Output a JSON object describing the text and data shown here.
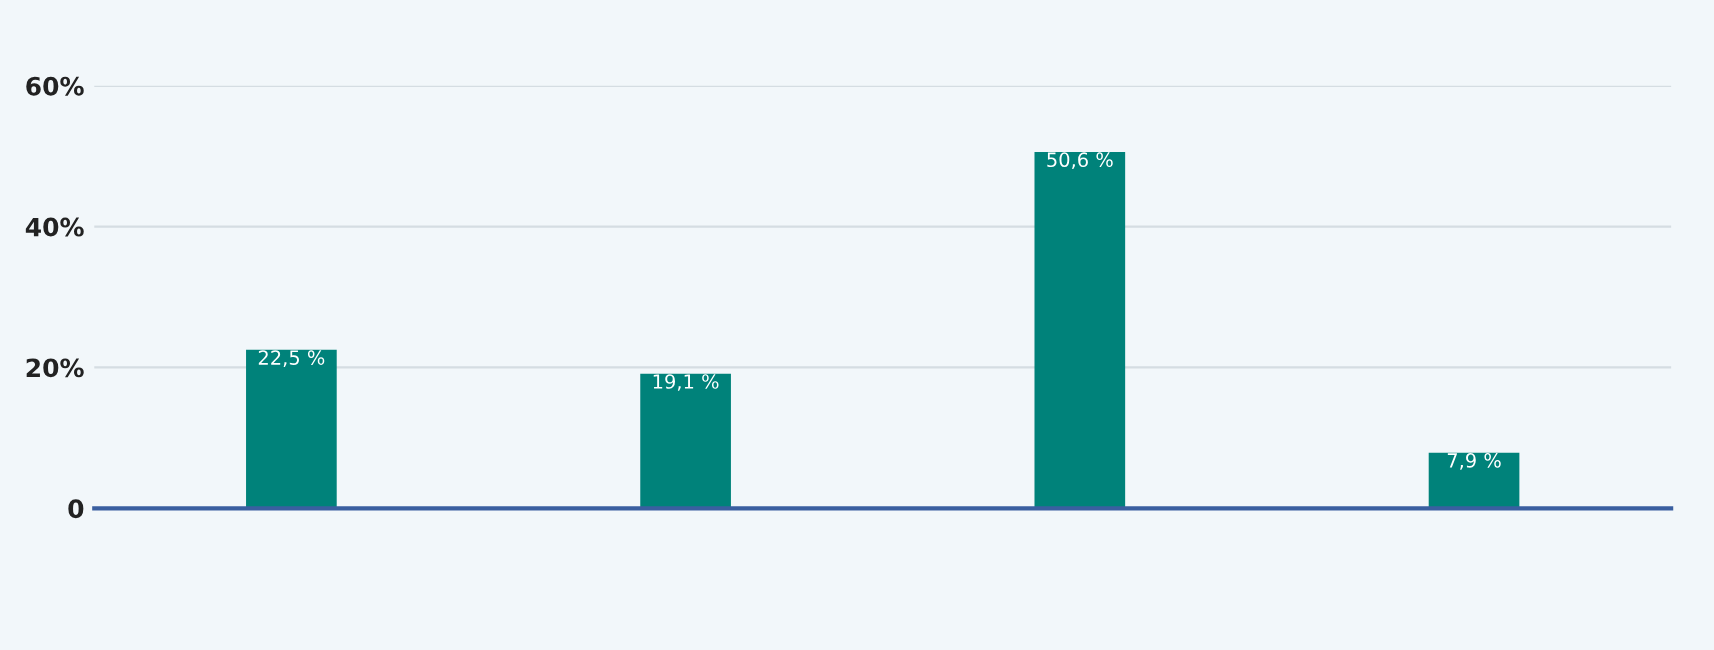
{
  "chart_data": {
    "type": "bar",
    "categories": [
      null,
      null,
      null,
      null
    ],
    "values": [
      22.5,
      19.1,
      50.6,
      7.9
    ],
    "value_labels": [
      "22,5 %",
      "19,1 %",
      "50,6 %",
      "7,9 %"
    ],
    "color": "#00827a",
    "ylim": [
      0,
      60
    ],
    "yticks": [
      {
        "value": 0,
        "label": "0"
      },
      {
        "value": 20,
        "label": "20%"
      },
      {
        "value": 40,
        "label": "40%"
      },
      {
        "value": 60,
        "label": "60%"
      }
    ],
    "grid": "y"
  }
}
